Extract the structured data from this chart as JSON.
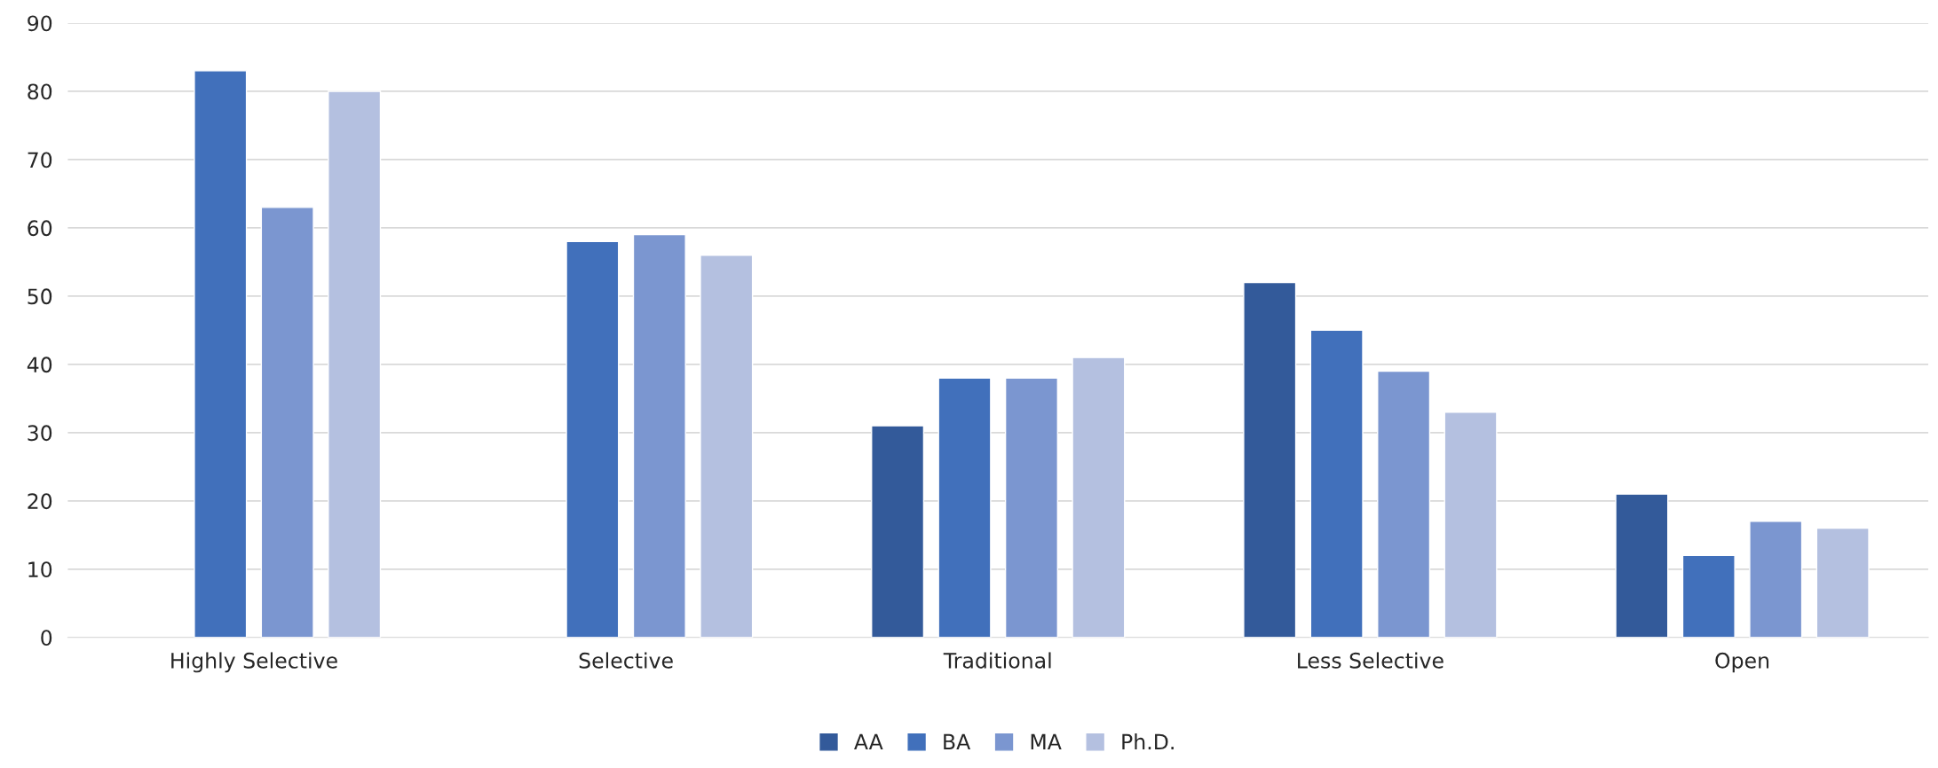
{
  "chart_data": {
    "type": "bar",
    "categories": [
      "Highly Selective",
      "Selective",
      "Traditional",
      "Less Selective",
      "Open"
    ],
    "series": [
      {
        "name": "AA",
        "color": "#335a9a",
        "values": [
          null,
          null,
          31,
          52,
          21
        ]
      },
      {
        "name": "BA",
        "color": "#4170bb",
        "values": [
          83,
          58,
          38,
          45,
          12
        ]
      },
      {
        "name": "MA",
        "color": "#7b96d0",
        "values": [
          63,
          59,
          38,
          39,
          17
        ]
      },
      {
        "name": "Ph.D.",
        "color": "#b4c0e0",
        "values": [
          80,
          56,
          41,
          33,
          16
        ]
      }
    ],
    "ylim": [
      0,
      90
    ],
    "yticks": [
      0,
      10,
      20,
      30,
      40,
      50,
      60,
      70,
      80,
      90
    ],
    "grid": "y",
    "legend": "bottom"
  }
}
